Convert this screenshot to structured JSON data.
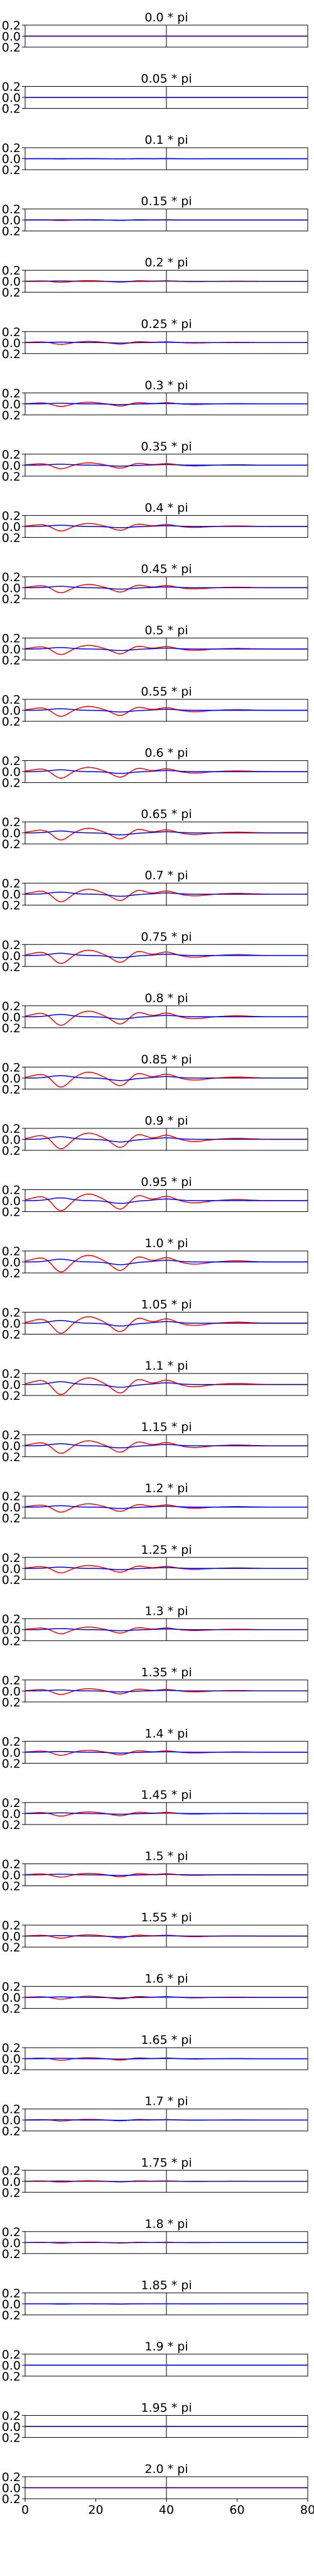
{
  "chart_data": {
    "type": "line",
    "xlim": [
      0,
      80
    ],
    "ylim": [
      -0.2,
      0.2
    ],
    "yticks": [
      "0.2",
      "0.0",
      "0.2"
    ],
    "xticks": [
      "0",
      "20",
      "40",
      "60",
      "80"
    ],
    "xtick_values": [
      0,
      20,
      40,
      60,
      80
    ],
    "divider_x": 40,
    "grid": false,
    "colors": {
      "real_curve": "#ff0000",
      "second_curve": "#0000ff",
      "frame": "#000000"
    },
    "peak_x": [
      10,
      27,
      40
    ],
    "panels": [
      {
        "title": "0.0 * pi",
        "amplitude": 0.0
      },
      {
        "title": "0.05 * pi",
        "amplitude": 0.0
      },
      {
        "title": "0.1 * pi",
        "amplitude": 0.005
      },
      {
        "title": "0.15 * pi",
        "amplitude": 0.01
      },
      {
        "title": "0.2 * pi",
        "amplitude": 0.02
      },
      {
        "title": "0.25 * pi",
        "amplitude": 0.035
      },
      {
        "title": "0.3 * pi",
        "amplitude": 0.05
      },
      {
        "title": "0.35 * pi",
        "amplitude": 0.07
      },
      {
        "title": "0.4 * pi",
        "amplitude": 0.09
      },
      {
        "title": "0.45 * pi",
        "amplitude": 0.1
      },
      {
        "title": "0.5 * pi",
        "amplitude": 0.11
      },
      {
        "title": "0.55 * pi",
        "amplitude": 0.12
      },
      {
        "title": "0.6 * pi",
        "amplitude": 0.13
      },
      {
        "title": "0.65 * pi",
        "amplitude": 0.14
      },
      {
        "title": "0.7 * pi",
        "amplitude": 0.15
      },
      {
        "title": "0.75 * pi",
        "amplitude": 0.16
      },
      {
        "title": "0.8 * pi",
        "amplitude": 0.17
      },
      {
        "title": "0.85 * pi",
        "amplitude": 0.18
      },
      {
        "title": "0.9 * pi",
        "amplitude": 0.19
      },
      {
        "title": "0.95 * pi",
        "amplitude": 0.2
      },
      {
        "title": "1.0 * pi",
        "amplitude": 0.2
      },
      {
        "title": "1.05 * pi",
        "amplitude": 0.2
      },
      {
        "title": "1.1 * pi",
        "amplitude": 0.2
      },
      {
        "title": "1.15 * pi",
        "amplitude": 0.15
      },
      {
        "title": "1.2 * pi",
        "amplitude": 0.1
      },
      {
        "title": "1.25 * pi",
        "amplitude": 0.09
      },
      {
        "title": "1.3 * pi",
        "amplitude": 0.08
      },
      {
        "title": "1.35 * pi",
        "amplitude": 0.07
      },
      {
        "title": "1.4 * pi",
        "amplitude": 0.06
      },
      {
        "title": "1.45 * pi",
        "amplitude": 0.05
      },
      {
        "title": "1.5 * pi",
        "amplitude": 0.045
      },
      {
        "title": "1.55 * pi",
        "amplitude": 0.04
      },
      {
        "title": "1.6 * pi",
        "amplitude": 0.035
      },
      {
        "title": "1.65 * pi",
        "amplitude": 0.03
      },
      {
        "title": "1.7 * pi",
        "amplitude": 0.02
      },
      {
        "title": "1.75 * pi",
        "amplitude": 0.015
      },
      {
        "title": "1.8 * pi",
        "amplitude": 0.01
      },
      {
        "title": "1.85 * pi",
        "amplitude": 0.005
      },
      {
        "title": "1.9 * pi",
        "amplitude": 0.0
      },
      {
        "title": "1.95 * pi",
        "amplitude": 0.0
      },
      {
        "title": "2.0 * pi",
        "amplitude": 0.0
      }
    ]
  }
}
